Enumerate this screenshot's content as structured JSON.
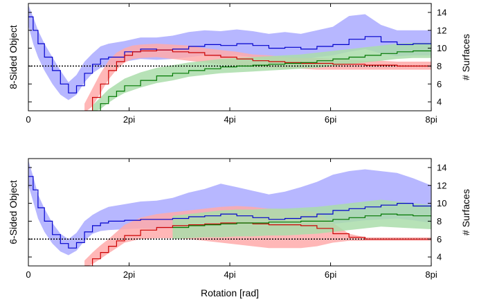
{
  "chart_data": [
    {
      "type": "line",
      "ylabel_left": "8-Sided Object",
      "ylabel_right": "# Surfaces",
      "xlabel": "",
      "xlim": [
        0,
        25.13
      ],
      "ylim": [
        3,
        15
      ],
      "x_tick_labels": [
        "0",
        "2pi",
        "4pi",
        "6pi",
        "8pi"
      ],
      "x_tick_values": [
        0,
        6.283,
        12.566,
        18.85,
        25.133
      ],
      "y_ticks": [
        4,
        6,
        8,
        10,
        12,
        14
      ],
      "reference_line": 8,
      "grid": false,
      "series": [
        {
          "color": "#0000cc",
          "band_color": "#aaaaff",
          "x": [
            0,
            0.3,
            0.6,
            1.0,
            1.5,
            2.0,
            2.5,
            3.0,
            3.5,
            4.0,
            4.5,
            5.0,
            6.0,
            7.0,
            8.0,
            9.0,
            10.0,
            11.0,
            12.0,
            13.0,
            14.0,
            15.0,
            16.0,
            17.0,
            18.0,
            19.0,
            20.0,
            21.0,
            22.0,
            23.0,
            24.0,
            25.13
          ],
          "y": [
            13.5,
            12.0,
            10.5,
            9.0,
            7.5,
            6.0,
            5.0,
            5.8,
            7.2,
            8.2,
            8.8,
            9.0,
            9.6,
            9.9,
            9.8,
            9.9,
            10.2,
            10.4,
            10.3,
            10.5,
            10.3,
            10.0,
            10.1,
            9.9,
            10.2,
            10.4,
            11.0,
            11.3,
            10.7,
            10.4,
            10.5,
            10.5
          ],
          "low": [
            12.5,
            10.5,
            9.0,
            7.5,
            6.0,
            4.8,
            4.2,
            4.8,
            6.2,
            7.2,
            7.8,
            8.0,
            8.5,
            8.8,
            8.7,
            8.8,
            9.0,
            9.2,
            9.0,
            9.2,
            9.0,
            8.8,
            8.9,
            8.7,
            9.0,
            9.2,
            9.6,
            9.9,
            9.4,
            9.1,
            9.2,
            9.2
          ],
          "high": [
            14.8,
            13.5,
            12.0,
            10.5,
            9.0,
            7.5,
            6.2,
            7.0,
            8.5,
            9.4,
            10.2,
            10.5,
            10.8,
            11.2,
            11.2,
            11.4,
            11.8,
            12.0,
            11.9,
            12.1,
            11.9,
            11.6,
            11.8,
            11.6,
            12.0,
            12.4,
            13.6,
            13.8,
            12.6,
            12.0,
            12.0,
            12.0
          ]
        },
        {
          "color": "#cc0000",
          "band_color": "#ffaaaa",
          "x": [
            3.5,
            4.0,
            4.5,
            5.0,
            5.5,
            6.0,
            6.5,
            7.0,
            8.0,
            9.0,
            10.0,
            11.0,
            12.0,
            13.0,
            14.0,
            15.0,
            16.0,
            17.0,
            18.0,
            19.0,
            20.0,
            21.0,
            22.0,
            23.0,
            24.0,
            25.13
          ],
          "y": [
            3.0,
            4.5,
            6.0,
            7.5,
            8.5,
            9.2,
            9.6,
            9.7,
            9.8,
            9.6,
            9.5,
            9.2,
            9.0,
            8.8,
            8.6,
            8.5,
            8.4,
            8.3,
            8.3,
            8.2,
            8.2,
            8.1,
            8.1,
            8.0,
            8.0,
            8.0
          ],
          "low": [
            2.8,
            3.5,
            5.0,
            6.5,
            7.6,
            8.4,
            8.8,
            8.9,
            9.0,
            8.8,
            8.6,
            8.4,
            8.2,
            8.0,
            7.9,
            7.8,
            7.7,
            7.7,
            7.6,
            7.6,
            7.6,
            7.6,
            7.6,
            7.6,
            7.6,
            7.6
          ],
          "high": [
            3.8,
            5.5,
            7.2,
            8.6,
            9.5,
            10.0,
            10.3,
            10.4,
            10.5,
            10.4,
            10.3,
            10.0,
            9.8,
            9.6,
            9.3,
            9.2,
            9.0,
            8.9,
            8.9,
            8.8,
            8.7,
            8.6,
            8.6,
            8.5,
            8.5,
            8.5
          ]
        },
        {
          "color": "#007700",
          "band_color": "#aaddaa",
          "x": [
            4.0,
            4.5,
            5.0,
            5.5,
            6.0,
            7.0,
            8.0,
            9.0,
            10.0,
            11.0,
            12.0,
            13.0,
            14.0,
            15.0,
            16.0,
            17.0,
            18.0,
            19.0,
            20.0,
            21.0,
            22.0,
            23.0,
            24.0,
            25.13
          ],
          "y": [
            3.0,
            3.8,
            4.6,
            5.2,
            5.8,
            6.4,
            6.9,
            7.2,
            7.5,
            7.7,
            7.9,
            8.0,
            8.1,
            8.2,
            8.3,
            8.4,
            8.6,
            8.8,
            9.0,
            9.2,
            9.4,
            9.6,
            9.7,
            9.7
          ],
          "low": [
            2.8,
            3.2,
            3.9,
            4.5,
            5.0,
            5.6,
            6.1,
            6.4,
            6.8,
            7.0,
            7.2,
            7.3,
            7.4,
            7.5,
            7.6,
            7.7,
            7.8,
            8.0,
            8.2,
            8.4,
            8.6,
            8.8,
            8.9,
            8.9
          ],
          "high": [
            3.6,
            4.5,
            5.4,
            6.0,
            6.6,
            7.3,
            7.8,
            8.1,
            8.4,
            8.6,
            8.8,
            8.9,
            9.0,
            9.1,
            9.2,
            9.3,
            9.5,
            9.7,
            9.9,
            10.1,
            10.3,
            10.5,
            10.6,
            10.6
          ]
        }
      ]
    },
    {
      "type": "line",
      "ylabel_left": "6-Sided Object",
      "ylabel_right": "# Surfaces",
      "xlabel": "Rotation [rad]",
      "xlim": [
        0,
        25.13
      ],
      "ylim": [
        3,
        15
      ],
      "x_tick_labels": [
        "0",
        "2pi",
        "4pi",
        "6pi",
        "8pi"
      ],
      "x_tick_values": [
        0,
        6.283,
        12.566,
        18.85,
        25.133
      ],
      "y_ticks": [
        4,
        6,
        8,
        10,
        12,
        14
      ],
      "reference_line": 6,
      "grid": false,
      "series": [
        {
          "color": "#0000cc",
          "band_color": "#aaaaff",
          "x": [
            0,
            0.3,
            0.6,
            1.0,
            1.5,
            2.0,
            2.5,
            3.0,
            3.5,
            4.0,
            4.5,
            5.0,
            6.0,
            7.0,
            8.0,
            9.0,
            10.0,
            11.0,
            12.0,
            13.0,
            14.0,
            15.0,
            16.0,
            17.0,
            18.0,
            19.0,
            20.0,
            21.0,
            22.0,
            23.0,
            24.0,
            25.13
          ],
          "y": [
            13.0,
            11.5,
            9.5,
            8.0,
            6.5,
            5.5,
            5.0,
            5.6,
            6.8,
            7.5,
            7.8,
            8.0,
            8.1,
            8.2,
            8.2,
            8.3,
            8.5,
            8.6,
            8.8,
            8.6,
            8.4,
            8.2,
            8.3,
            8.5,
            8.8,
            9.2,
            9.4,
            9.6,
            9.8,
            10.0,
            9.7,
            9.2
          ],
          "low": [
            12.0,
            10.2,
            8.3,
            6.8,
            5.5,
            4.6,
            4.2,
            4.7,
            5.8,
            6.6,
            6.9,
            7.0,
            7.1,
            7.2,
            7.1,
            7.2,
            7.3,
            7.4,
            7.5,
            7.3,
            7.1,
            7.0,
            7.1,
            7.2,
            7.4,
            7.7,
            7.9,
            8.1,
            8.2,
            8.3,
            8.1,
            7.8
          ],
          "high": [
            14.8,
            13.0,
            11.0,
            9.4,
            7.8,
            6.6,
            6.0,
            6.7,
            8.0,
            8.7,
            9.2,
            9.6,
            9.9,
            10.2,
            10.3,
            10.6,
            11.2,
            11.6,
            12.2,
            11.8,
            11.4,
            11.0,
            11.3,
            11.8,
            12.4,
            13.2,
            13.6,
            13.8,
            13.6,
            13.4,
            12.8,
            12.0
          ]
        },
        {
          "color": "#cc0000",
          "band_color": "#ffaaaa",
          "x": [
            3.5,
            4.0,
            4.5,
            5.0,
            5.5,
            6.0,
            7.0,
            8.0,
            9.0,
            10.0,
            11.0,
            12.0,
            13.0,
            14.0,
            15.0,
            16.0,
            17.0,
            18.0,
            19.0,
            20.0,
            21.0,
            22.0,
            23.0,
            24.0,
            25.13
          ],
          "y": [
            3.0,
            3.8,
            4.5,
            5.2,
            5.8,
            6.4,
            7.0,
            7.3,
            7.5,
            7.6,
            7.7,
            7.8,
            7.8,
            7.7,
            7.6,
            7.6,
            7.5,
            7.2,
            6.6,
            6.2,
            6.0,
            6.0,
            6.0,
            6.0,
            6.0
          ],
          "low": [
            2.8,
            3.2,
            3.8,
            4.4,
            5.0,
            5.6,
            6.0,
            6.1,
            6.1,
            6.0,
            5.8,
            5.6,
            5.4,
            5.2,
            5.0,
            5.0,
            5.0,
            5.2,
            5.6,
            5.8,
            5.8,
            5.8,
            5.8,
            5.8,
            5.8
          ],
          "high": [
            3.6,
            4.5,
            5.3,
            6.0,
            6.8,
            7.6,
            8.4,
            8.8,
            9.0,
            9.2,
            9.4,
            9.6,
            9.7,
            9.6,
            9.4,
            9.3,
            9.2,
            9.0,
            7.8,
            6.6,
            6.2,
            6.2,
            6.2,
            6.2,
            6.2
          ]
        },
        {
          "color": "#007700",
          "band_color": "#aaddaa",
          "x": [
            9.0,
            10.0,
            11.0,
            12.0,
            13.0,
            14.0,
            15.0,
            16.0,
            17.0,
            18.0,
            19.0,
            20.0,
            21.0,
            22.0,
            23.0,
            24.0,
            25.13
          ],
          "y": [
            7.3,
            7.5,
            7.6,
            7.7,
            7.8,
            7.8,
            7.9,
            7.9,
            8.0,
            8.0,
            8.2,
            8.4,
            8.6,
            8.8,
            8.7,
            8.6,
            8.5
          ],
          "low": [
            6.0,
            6.1,
            6.2,
            6.2,
            6.3,
            6.3,
            6.4,
            6.4,
            6.5,
            6.6,
            6.8,
            7.0,
            7.2,
            7.4,
            7.3,
            7.2,
            7.1
          ],
          "high": [
            8.6,
            8.8,
            9.0,
            9.2,
            9.3,
            9.3,
            9.4,
            9.4,
            9.5,
            9.6,
            9.8,
            10.0,
            10.2,
            10.4,
            10.2,
            10.0,
            9.8
          ]
        }
      ]
    }
  ]
}
